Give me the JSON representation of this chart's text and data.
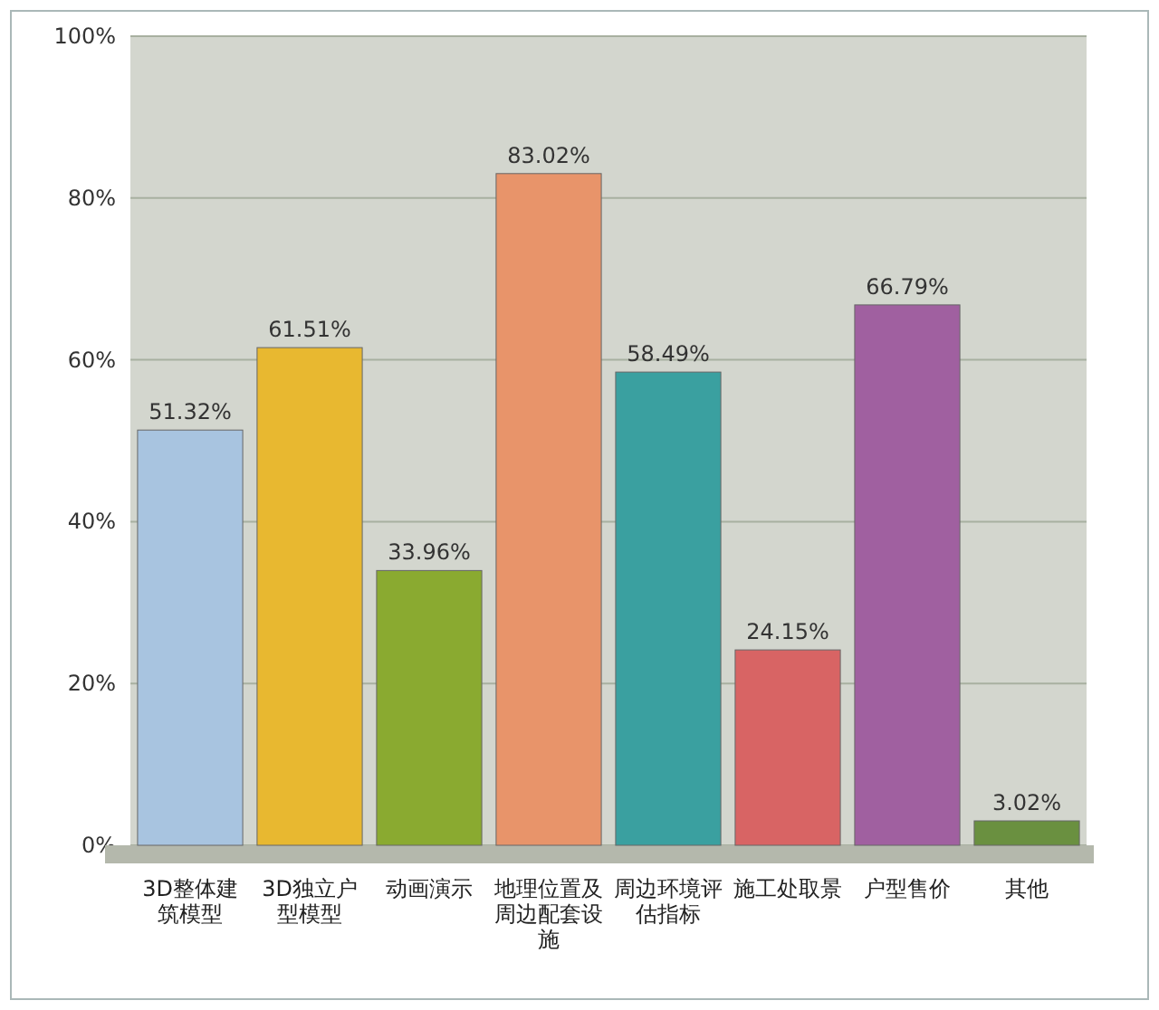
{
  "chart_data": {
    "type": "bar",
    "categories": [
      "3D整体建筑模型",
      "3D独立户型模型",
      "动画演示",
      "地理位置及周边配套设施",
      "周边环境评估指标",
      "施工处取景",
      "户型售价",
      "其他"
    ],
    "values": [
      51.32,
      61.51,
      33.96,
      83.02,
      58.49,
      24.15,
      66.79,
      3.02
    ],
    "value_labels": [
      "51.32%",
      "61.51%",
      "33.96%",
      "83.02%",
      "58.49%",
      "24.15%",
      "66.79%",
      "3.02%"
    ],
    "colors": [
      "#a8c4e0",
      "#e8b830",
      "#8aaa30",
      "#e8946a",
      "#3aa0a0",
      "#d86464",
      "#a060a0",
      "#6a9040"
    ],
    "ylim": [
      0,
      100
    ],
    "yticks": [
      {
        "value": 0,
        "label": "0%"
      },
      {
        "value": 20,
        "label": "20%"
      },
      {
        "value": 40,
        "label": "40%"
      },
      {
        "value": 60,
        "label": "60%"
      },
      {
        "value": 80,
        "label": "80%"
      },
      {
        "value": 100,
        "label": "100%"
      }
    ],
    "grid": "y"
  }
}
